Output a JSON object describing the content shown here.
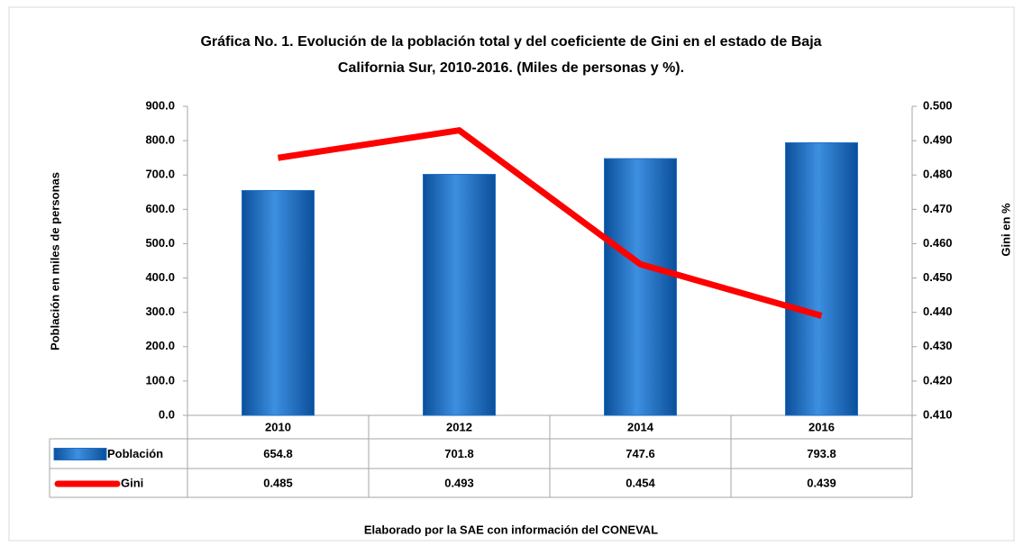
{
  "chart_data": {
    "type": "bar",
    "title": "Gráfica No. 1. Evolución de la población total y del coeficiente de Gini en el estado de Baja California Sur, 2010-2016. (Miles de personas y %).",
    "title_lines": [
      "Gráfica No. 1. Evolución de la población total y del coeficiente de Gini en el estado de Baja",
      "California Sur, 2010-2016. (Miles de personas y %)."
    ],
    "ylabel": "Población en miles de personas",
    "y2label": "Gini en %",
    "footer": "Elaborado por la SAE con información del CONEVAL",
    "categories": [
      "2010",
      "2012",
      "2014",
      "2016"
    ],
    "series": [
      {
        "name": "Población",
        "color": "#1f6fc5",
        "values": [
          654.8,
          701.8,
          747.6,
          793.8
        ]
      },
      {
        "name": "Gini",
        "color": "#ff0000",
        "type": "line",
        "axis": "y2",
        "values": [
          0.485,
          0.493,
          0.454,
          0.439
        ]
      }
    ],
    "ylim": [
      0,
      900
    ],
    "yticks": [
      {
        "value": 0,
        "label": "0.0"
      },
      {
        "value": 100,
        "label": "100.0"
      },
      {
        "value": 200,
        "label": "200.0"
      },
      {
        "value": 300,
        "label": "300.0"
      },
      {
        "value": 400,
        "label": "400.0"
      },
      {
        "value": 500,
        "label": "500.0"
      },
      {
        "value": 600,
        "label": "600.0"
      },
      {
        "value": 700,
        "label": "700.0"
      },
      {
        "value": 800,
        "label": "800.0"
      },
      {
        "value": 900,
        "label": "900.0"
      }
    ],
    "y2lim": [
      0.41,
      0.5
    ],
    "y2ticks": [
      {
        "value": 0.41,
        "label": "0.410"
      },
      {
        "value": 0.42,
        "label": "0.420"
      },
      {
        "value": 0.43,
        "label": "0.430"
      },
      {
        "value": 0.44,
        "label": "0.440"
      },
      {
        "value": 0.45,
        "label": "0.450"
      },
      {
        "value": 0.46,
        "label": "0.460"
      },
      {
        "value": 0.47,
        "label": "0.470"
      },
      {
        "value": 0.48,
        "label": "0.480"
      },
      {
        "value": 0.49,
        "label": "0.490"
      },
      {
        "value": 0.5,
        "label": "0.500"
      }
    ],
    "grid": false
  }
}
